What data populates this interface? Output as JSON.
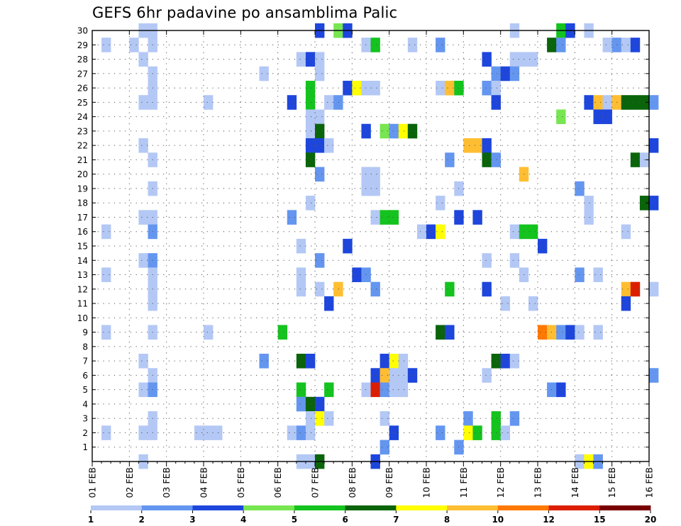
{
  "title": "GEFS 6hr padavine po ansamblima Palic",
  "chart_data": {
    "type": "heatmap",
    "title": "GEFS 6hr padavine po ansamblima Palic",
    "x_ticks": [
      "01 FEB",
      "02 FEB",
      "03 FEB",
      "04 FEB",
      "05 FEB",
      "06 FEB",
      "07 FEB",
      "08 FEB",
      "09 FEB",
      "10 FEB",
      "11 FEB",
      "12 FEB",
      "13 FEB",
      "14 FEB",
      "15 FEB",
      "16 FEB"
    ],
    "y_ticks": [
      "1",
      "2",
      "3",
      "4",
      "5",
      "6",
      "7",
      "8",
      "9",
      "10",
      "11",
      "12",
      "13",
      "14",
      "15",
      "16",
      "17",
      "18",
      "19",
      "20",
      "21",
      "22",
      "23",
      "24",
      "25",
      "26",
      "27",
      "28",
      "29",
      "30"
    ],
    "x_range_days": [
      0,
      15
    ],
    "y_range": [
      0,
      30
    ],
    "steps_per_day": 4,
    "legend": {
      "boundaries": [
        "1",
        "2",
        "3",
        "4",
        "5",
        "6",
        "7",
        "8",
        "10",
        "12",
        "15",
        "20"
      ],
      "colors": [
        "#b4c8f5",
        "#6496f0",
        "#1e46dc",
        "#78e650",
        "#14c31e",
        "#0a640a",
        "#ffff00",
        "#ffbe32",
        "#ff7800",
        "#dc1e00",
        "#780000"
      ]
    },
    "cells": [
      [
        1.25,
        30,
        0
      ],
      [
        1.5,
        30,
        0
      ],
      [
        6.0,
        30,
        2
      ],
      [
        6.5,
        30,
        3
      ],
      [
        6.75,
        30,
        2
      ],
      [
        11.25,
        30,
        0
      ],
      [
        12.5,
        30,
        4
      ],
      [
        12.75,
        30,
        2
      ],
      [
        13.25,
        30,
        0
      ],
      [
        0.25,
        29,
        0
      ],
      [
        1.0,
        29,
        0
      ],
      [
        1.5,
        29,
        0
      ],
      [
        7.25,
        29,
        0
      ],
      [
        7.5,
        29,
        4
      ],
      [
        8.5,
        29,
        0
      ],
      [
        9.25,
        29,
        1
      ],
      [
        12.25,
        29,
        5
      ],
      [
        12.5,
        29,
        1
      ],
      [
        13.75,
        29,
        0
      ],
      [
        14.0,
        29,
        1
      ],
      [
        14.25,
        29,
        0
      ],
      [
        14.5,
        29,
        2
      ],
      [
        1.25,
        28,
        0
      ],
      [
        5.5,
        28,
        0
      ],
      [
        5.75,
        28,
        2
      ],
      [
        6.0,
        28,
        0
      ],
      [
        10.5,
        28,
        2
      ],
      [
        11.25,
        28,
        0
      ],
      [
        11.5,
        28,
        0
      ],
      [
        11.75,
        28,
        0
      ],
      [
        1.5,
        27,
        0
      ],
      [
        4.5,
        27,
        0
      ],
      [
        6.0,
        27,
        0
      ],
      [
        10.75,
        27,
        1
      ],
      [
        11.0,
        27,
        2
      ],
      [
        11.25,
        27,
        1
      ],
      [
        1.5,
        26,
        0
      ],
      [
        5.75,
        26,
        4
      ],
      [
        6.75,
        26,
        2
      ],
      [
        7.0,
        26,
        6
      ],
      [
        7.25,
        26,
        0
      ],
      [
        7.5,
        26,
        0
      ],
      [
        9.25,
        26,
        0
      ],
      [
        9.5,
        26,
        7
      ],
      [
        9.75,
        26,
        4
      ],
      [
        10.5,
        26,
        1
      ],
      [
        10.75,
        26,
        0
      ],
      [
        1.25,
        25,
        0
      ],
      [
        1.5,
        25,
        0
      ],
      [
        3.0,
        25,
        0
      ],
      [
        5.25,
        25,
        2
      ],
      [
        5.75,
        25,
        4
      ],
      [
        6.25,
        25,
        0
      ],
      [
        6.5,
        25,
        1
      ],
      [
        10.75,
        25,
        2
      ],
      [
        13.25,
        25,
        2
      ],
      [
        13.5,
        25,
        7
      ],
      [
        13.75,
        25,
        0
      ],
      [
        14.0,
        25,
        7
      ],
      [
        14.25,
        25,
        5
      ],
      [
        14.5,
        25,
        5
      ],
      [
        14.75,
        25,
        5
      ],
      [
        15.0,
        25,
        1
      ],
      [
        5.75,
        24,
        0
      ],
      [
        6.0,
        24,
        0
      ],
      [
        12.5,
        24,
        3
      ],
      [
        13.5,
        24,
        2
      ],
      [
        13.75,
        24,
        2
      ],
      [
        5.75,
        23,
        0
      ],
      [
        6.0,
        23,
        5
      ],
      [
        7.25,
        23,
        2
      ],
      [
        7.75,
        23,
        3
      ],
      [
        8.0,
        23,
        1
      ],
      [
        8.25,
        23,
        6
      ],
      [
        8.5,
        23,
        5
      ],
      [
        1.25,
        22,
        0
      ],
      [
        5.75,
        22,
        2
      ],
      [
        6.0,
        22,
        2
      ],
      [
        6.25,
        22,
        0
      ],
      [
        10.0,
        22,
        7
      ],
      [
        10.25,
        22,
        7
      ],
      [
        10.5,
        22,
        2
      ],
      [
        15.0,
        22,
        2
      ],
      [
        1.5,
        21,
        0
      ],
      [
        5.75,
        21,
        5
      ],
      [
        9.5,
        21,
        1
      ],
      [
        10.5,
        21,
        5
      ],
      [
        10.75,
        21,
        1
      ],
      [
        14.5,
        21,
        5
      ],
      [
        14.75,
        21,
        0
      ],
      [
        6.0,
        20,
        1
      ],
      [
        7.25,
        20,
        0
      ],
      [
        7.5,
        20,
        0
      ],
      [
        11.5,
        20,
        7
      ],
      [
        1.5,
        19,
        0
      ],
      [
        7.25,
        19,
        0
      ],
      [
        7.5,
        19,
        0
      ],
      [
        9.75,
        19,
        0
      ],
      [
        13.0,
        19,
        1
      ],
      [
        5.75,
        18,
        0
      ],
      [
        9.25,
        18,
        0
      ],
      [
        13.25,
        18,
        0
      ],
      [
        14.75,
        18,
        5
      ],
      [
        15.0,
        18,
        2
      ],
      [
        1.25,
        17,
        0
      ],
      [
        1.5,
        17,
        0
      ],
      [
        5.25,
        17,
        1
      ],
      [
        7.5,
        17,
        0
      ],
      [
        7.75,
        17,
        4
      ],
      [
        8.0,
        17,
        4
      ],
      [
        9.75,
        17,
        2
      ],
      [
        10.25,
        17,
        2
      ],
      [
        13.25,
        17,
        0
      ],
      [
        0.25,
        16,
        0
      ],
      [
        1.5,
        16,
        1
      ],
      [
        8.75,
        16,
        0
      ],
      [
        9.0,
        16,
        2
      ],
      [
        9.25,
        16,
        6
      ],
      [
        11.25,
        16,
        0
      ],
      [
        11.5,
        16,
        4
      ],
      [
        11.75,
        16,
        4
      ],
      [
        14.25,
        16,
        0
      ],
      [
        5.5,
        15,
        0
      ],
      [
        6.75,
        15,
        2
      ],
      [
        12.0,
        15,
        2
      ],
      [
        1.25,
        14,
        0
      ],
      [
        1.5,
        14,
        1
      ],
      [
        6.0,
        14,
        1
      ],
      [
        10.5,
        14,
        0
      ],
      [
        11.25,
        14,
        0
      ],
      [
        0.25,
        13,
        0
      ],
      [
        1.5,
        13,
        0
      ],
      [
        5.5,
        13,
        0
      ],
      [
        7.0,
        13,
        2
      ],
      [
        7.25,
        13,
        1
      ],
      [
        11.5,
        13,
        0
      ],
      [
        13.0,
        13,
        1
      ],
      [
        13.5,
        13,
        0
      ],
      [
        1.5,
        12,
        0
      ],
      [
        5.5,
        12,
        0
      ],
      [
        6.0,
        12,
        0
      ],
      [
        6.5,
        12,
        7
      ],
      [
        7.5,
        12,
        1
      ],
      [
        9.5,
        12,
        4
      ],
      [
        10.5,
        12,
        2
      ],
      [
        14.25,
        12,
        7
      ],
      [
        14.5,
        12,
        9
      ],
      [
        15.0,
        12,
        0
      ],
      [
        1.5,
        11,
        0
      ],
      [
        6.25,
        11,
        2
      ],
      [
        11.0,
        11,
        0
      ],
      [
        11.75,
        11,
        0
      ],
      [
        14.25,
        11,
        2
      ],
      [
        0.25,
        9,
        0
      ],
      [
        1.5,
        9,
        0
      ],
      [
        3.0,
        9,
        0
      ],
      [
        5.0,
        9,
        4
      ],
      [
        9.25,
        9,
        5
      ],
      [
        9.5,
        9,
        2
      ],
      [
        12.0,
        9,
        8
      ],
      [
        12.25,
        9,
        7
      ],
      [
        12.5,
        9,
        1
      ],
      [
        12.75,
        9,
        2
      ],
      [
        13.0,
        9,
        0
      ],
      [
        13.5,
        9,
        0
      ],
      [
        1.25,
        7,
        0
      ],
      [
        4.5,
        7,
        1
      ],
      [
        5.5,
        7,
        5
      ],
      [
        5.75,
        7,
        2
      ],
      [
        7.75,
        7,
        2
      ],
      [
        8.0,
        7,
        6
      ],
      [
        8.25,
        7,
        0
      ],
      [
        10.75,
        7,
        5
      ],
      [
        11.0,
        7,
        2
      ],
      [
        11.25,
        7,
        0
      ],
      [
        1.5,
        6,
        0
      ],
      [
        7.5,
        6,
        2
      ],
      [
        7.75,
        6,
        7
      ],
      [
        8.0,
        6,
        0
      ],
      [
        8.25,
        6,
        0
      ],
      [
        8.5,
        6,
        2
      ],
      [
        10.5,
        6,
        0
      ],
      [
        15.0,
        6,
        1
      ],
      [
        1.25,
        5,
        0
      ],
      [
        1.5,
        5,
        1
      ],
      [
        5.5,
        5,
        4
      ],
      [
        6.25,
        5,
        4
      ],
      [
        7.25,
        5,
        0
      ],
      [
        7.5,
        5,
        9
      ],
      [
        7.75,
        5,
        1
      ],
      [
        8.0,
        5,
        0
      ],
      [
        8.25,
        5,
        0
      ],
      [
        12.25,
        5,
        1
      ],
      [
        12.5,
        5,
        2
      ],
      [
        5.5,
        4,
        1
      ],
      [
        5.75,
        4,
        5
      ],
      [
        6.0,
        4,
        2
      ],
      [
        1.5,
        3,
        0
      ],
      [
        5.75,
        3,
        0
      ],
      [
        6.0,
        3,
        6
      ],
      [
        6.25,
        3,
        0
      ],
      [
        7.75,
        3,
        0
      ],
      [
        10.0,
        3,
        1
      ],
      [
        10.75,
        3,
        4
      ],
      [
        11.25,
        3,
        1
      ],
      [
        0.25,
        2,
        0
      ],
      [
        1.25,
        2,
        0
      ],
      [
        1.5,
        2,
        0
      ],
      [
        2.75,
        2,
        0
      ],
      [
        3.0,
        2,
        0
      ],
      [
        3.25,
        2,
        0
      ],
      [
        5.25,
        2,
        0
      ],
      [
        5.5,
        2,
        1
      ],
      [
        5.75,
        2,
        0
      ],
      [
        8.0,
        2,
        2
      ],
      [
        9.25,
        2,
        1
      ],
      [
        10.0,
        2,
        6
      ],
      [
        10.25,
        2,
        4
      ],
      [
        10.75,
        2,
        4
      ],
      [
        11.0,
        2,
        0
      ],
      [
        7.75,
        1,
        1
      ],
      [
        9.75,
        1,
        1
      ],
      [
        1.25,
        0,
        0
      ],
      [
        5.5,
        0,
        0
      ],
      [
        5.75,
        0,
        0
      ],
      [
        6.0,
        0,
        5
      ],
      [
        7.5,
        0,
        2
      ],
      [
        13.0,
        0,
        0
      ],
      [
        13.25,
        0,
        6
      ],
      [
        13.5,
        0,
        1
      ]
    ]
  }
}
